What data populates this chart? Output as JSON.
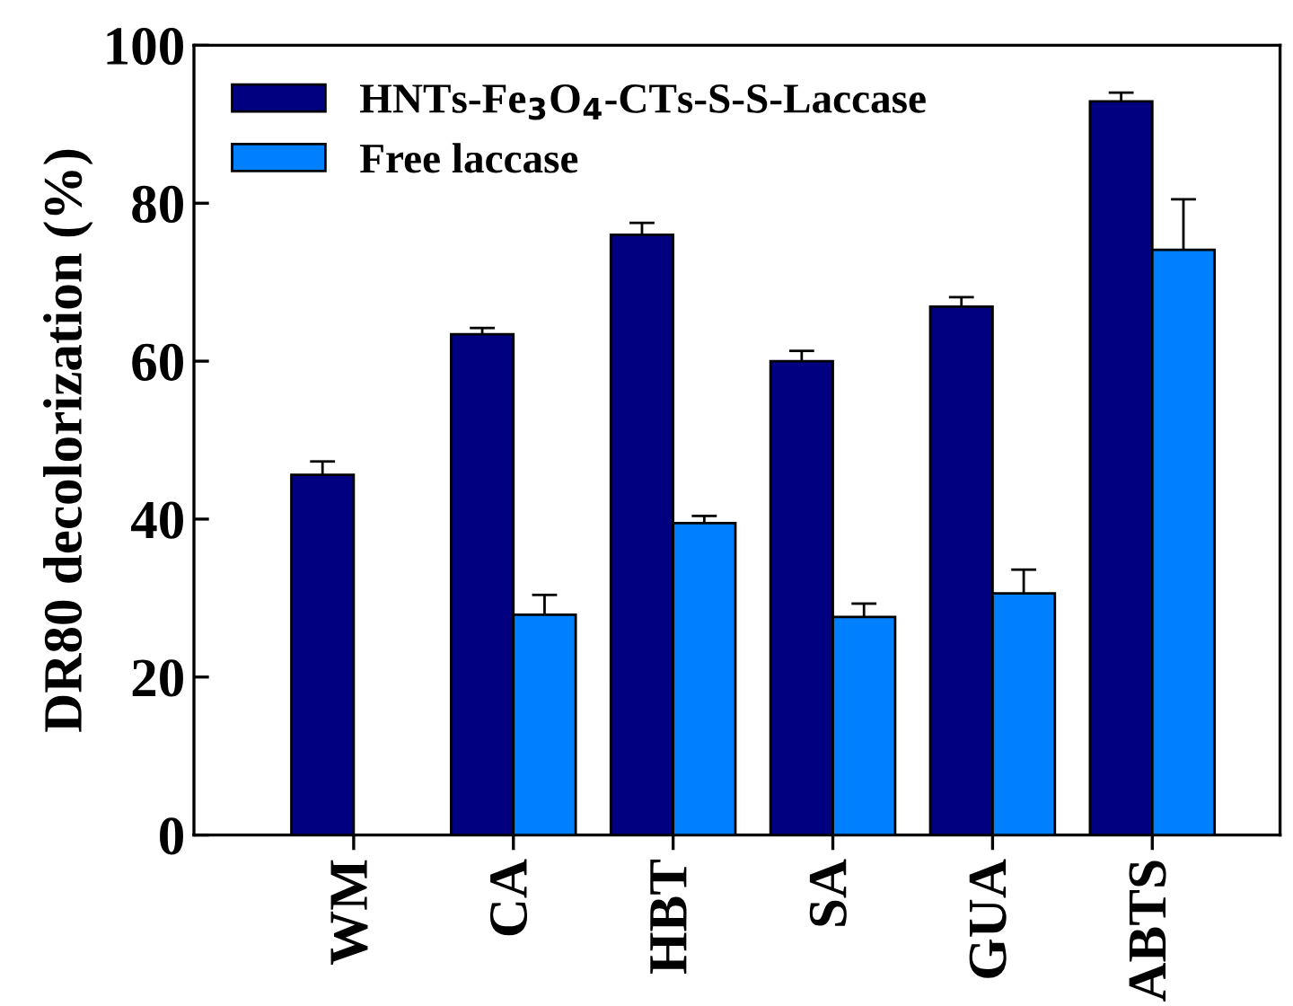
{
  "chart_data": {
    "type": "bar",
    "ylabel": "DR80 decolorization (%)",
    "categories": [
      "WM",
      "CA",
      "HBT",
      "SA",
      "GUA",
      "ABTS"
    ],
    "series": [
      {
        "name": "HNTs-Fe$_{3}$O$_{4}$-CTs-S-S-Laccase",
        "color": "#000080",
        "values": [
          45.6,
          63.4,
          76.0,
          60.0,
          66.9,
          92.9
        ],
        "errors": [
          1.7,
          0.8,
          1.5,
          1.3,
          1.2,
          1.1
        ]
      },
      {
        "name": "Free laccase",
        "color": "#0080ff",
        "values": [
          null,
          27.9,
          39.5,
          27.6,
          30.6,
          74.1
        ],
        "errors": [
          null,
          2.5,
          0.9,
          1.7,
          3.0,
          6.4
        ]
      }
    ],
    "ylim": [
      0,
      100
    ],
    "yticks": [
      0,
      20,
      40,
      60,
      80,
      100
    ],
    "grid": false,
    "legend": "top left"
  }
}
